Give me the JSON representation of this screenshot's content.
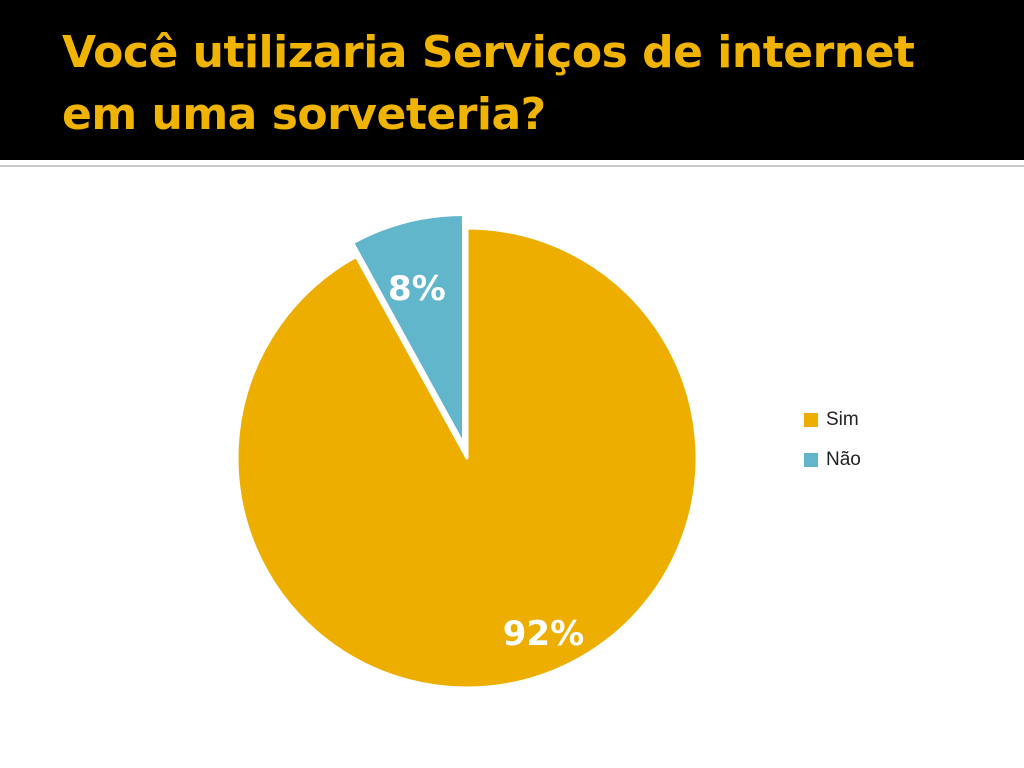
{
  "slide": {
    "title": "Você utilizaria Serviços de internet em uma sorveteria?"
  },
  "colors": {
    "title_bar": "#000000",
    "title_text": "#f0b400",
    "slice_sim": "#edae00",
    "slice_nao": "#62b6cc"
  },
  "chart_data": {
    "type": "pie",
    "title": "",
    "categories": [
      "Sim",
      "Não"
    ],
    "values": [
      92,
      8
    ],
    "data_labels": [
      "92%",
      "8%"
    ],
    "legend": {
      "position": "right",
      "entries": [
        "Sim",
        "Não"
      ]
    },
    "exploded": "Não"
  }
}
